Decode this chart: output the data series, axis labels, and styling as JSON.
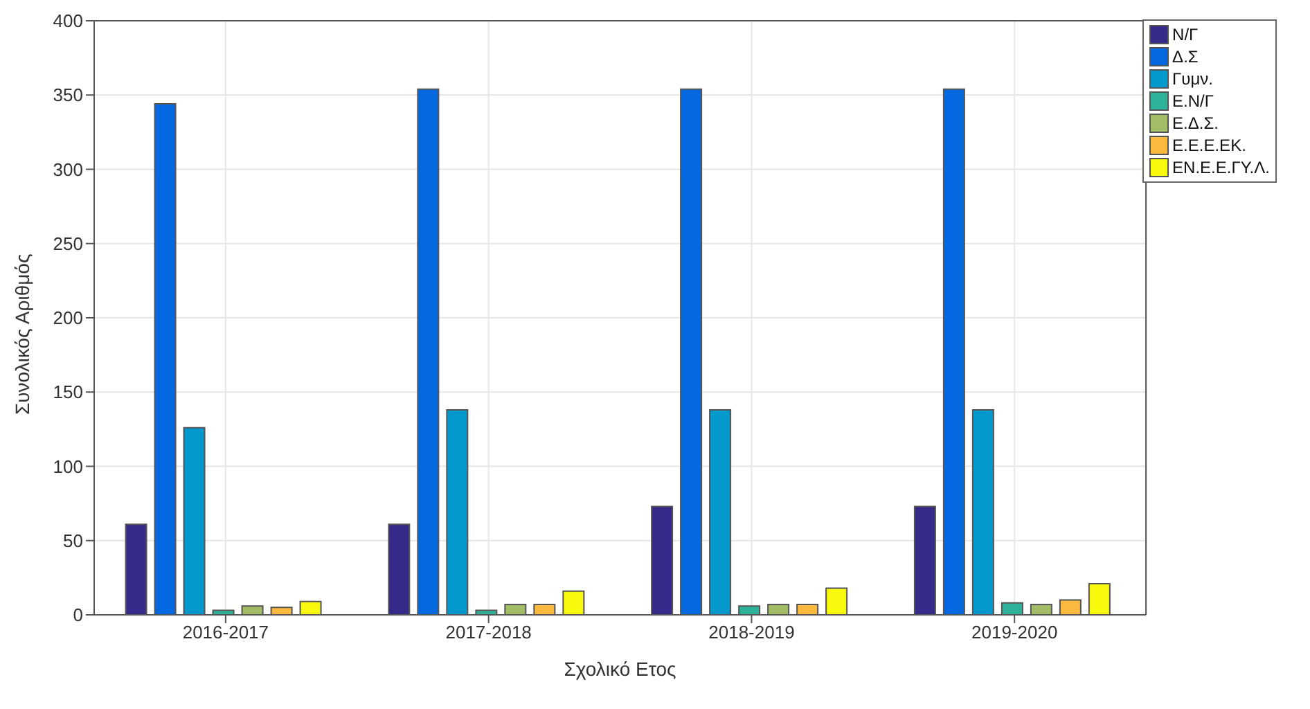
{
  "chart_data": {
    "type": "bar",
    "xlabel": "Σχολικό Ετος",
    "ylabel": "Συνολικός Αριθμός",
    "categories": [
      "2016-2017",
      "2017-2018",
      "2018-2019",
      "2019-2020"
    ],
    "series": [
      {
        "name": "N/Γ",
        "color": "#352a87",
        "values": [
          61,
          61,
          73,
          73
        ]
      },
      {
        "name": "Δ.Σ",
        "color": "#0468e1",
        "values": [
          344,
          354,
          354,
          354
        ]
      },
      {
        "name": "Γυμν.",
        "color": "#0499cd",
        "values": [
          126,
          138,
          138,
          138
        ]
      },
      {
        "name": "Ε.Ν/Γ",
        "color": "#2eb29a",
        "values": [
          3,
          3,
          6,
          8
        ]
      },
      {
        "name": "Ε.Δ.Σ.",
        "color": "#a2bd66",
        "values": [
          6,
          7,
          7,
          7
        ]
      },
      {
        "name": "Ε.Ε.Ε.ΕΚ.",
        "color": "#fbb93d",
        "values": [
          5,
          7,
          7,
          10
        ]
      },
      {
        "name": "ΕΝ.Ε.Ε.ΓΥ.Λ.",
        "color": "#f8f90d",
        "values": [
          9,
          16,
          18,
          21
        ]
      }
    ],
    "ylim": [
      0,
      400
    ],
    "yticks": [
      0,
      50,
      100,
      150,
      200,
      250,
      300,
      350,
      400
    ],
    "grid": true,
    "legend": "top right"
  }
}
